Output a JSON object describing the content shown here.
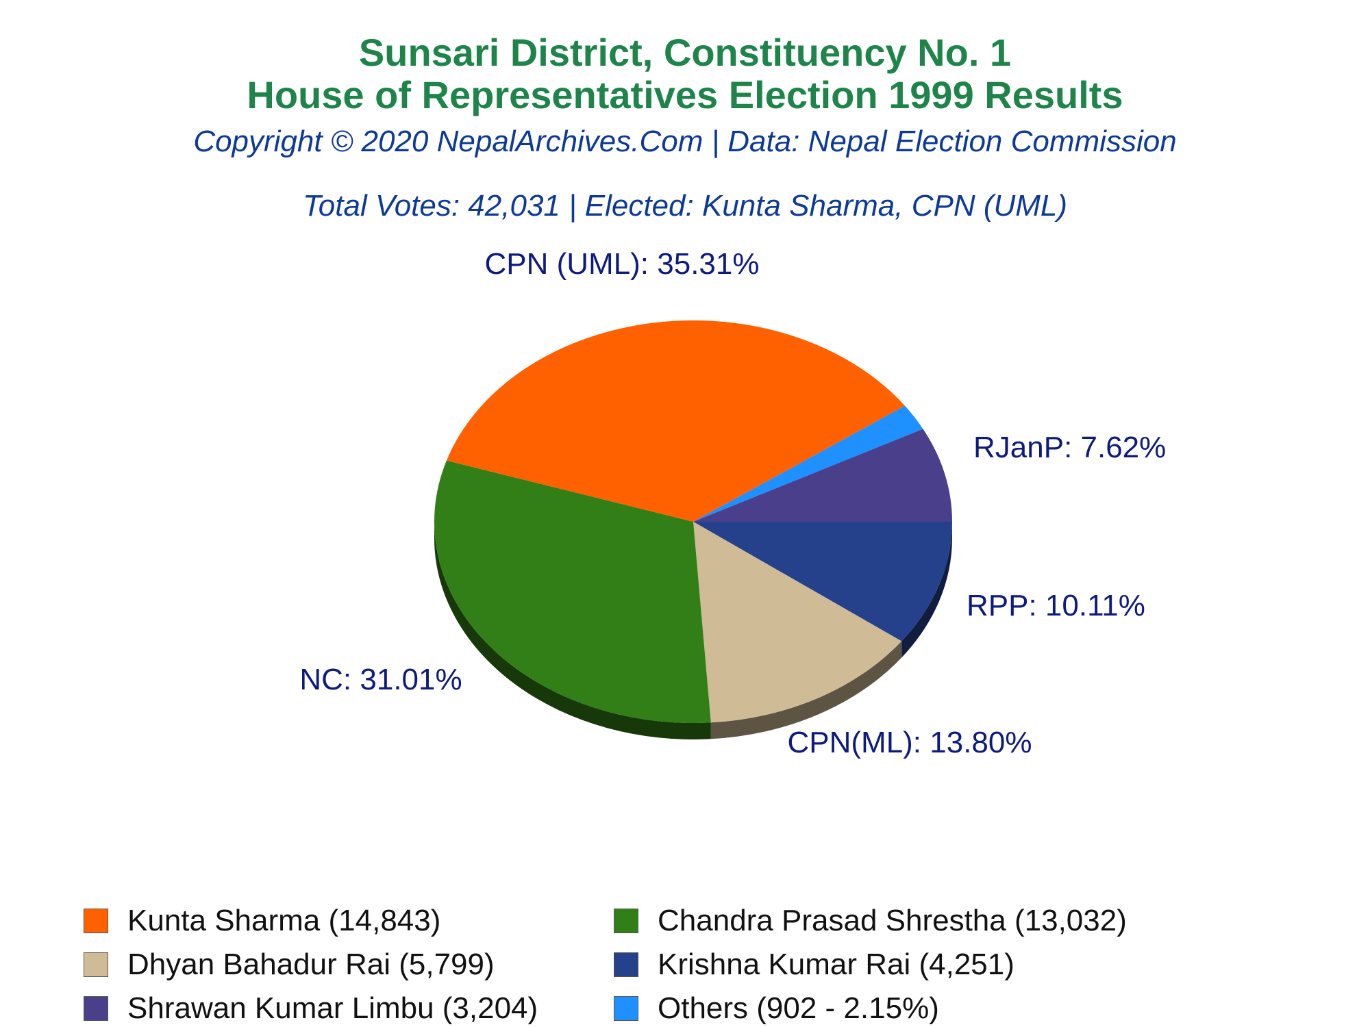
{
  "header": {
    "title_line1": "Sunsari District, Constituency No. 1",
    "title_line2": "House of Representatives Election 1999 Results",
    "copyright": "Copyright © 2020 NepalArchives.Com | Data: Nepal Election Commission",
    "summary": "Total Votes: 42,031 | Elected: Kunta Sharma, CPN (UML)"
  },
  "chart_data": {
    "type": "pie",
    "title": "Sunsari District, Constituency No. 1 House of Representatives Election 1999 Results",
    "total_votes": 42031,
    "slices": [
      {
        "candidate": "Kunta Sharma",
        "party": "CPN (UML)",
        "votes": 14843,
        "percent": 35.31,
        "label": "CPN (UML): 35.31%",
        "color": "#ff6000",
        "legend": "Kunta Sharma (14,843)"
      },
      {
        "candidate": "Chandra Prasad Shrestha",
        "party": "NC",
        "votes": 13032,
        "percent": 31.01,
        "label": "NC: 31.01%",
        "color": "#327f17",
        "legend": "Chandra Prasad Shrestha (13,032)"
      },
      {
        "candidate": "Dhyan Bahadur Rai",
        "party": "CPN(ML)",
        "votes": 5799,
        "percent": 13.8,
        "label": "CPN(ML): 13.80%",
        "color": "#cfbb96",
        "legend": "Dhyan Bahadur Rai (5,799)"
      },
      {
        "candidate": "Krishna Kumar Rai",
        "party": "RPP",
        "votes": 4251,
        "percent": 10.11,
        "label": "RPP: 10.11%",
        "color": "#25418b",
        "legend": "Krishna Kumar Rai (4,251)"
      },
      {
        "candidate": "Shrawan Kumar Limbu",
        "party": "RJanP",
        "votes": 3204,
        "percent": 7.62,
        "label": "RJanP: 7.62%",
        "color": "#4a3f8b",
        "legend": "Shrawan Kumar Limbu (3,204)"
      },
      {
        "candidate": "Others",
        "party": "Others",
        "votes": 902,
        "percent": 2.15,
        "label": "",
        "color": "#1e90ff",
        "legend": "Others (902 - 2.15%)"
      }
    ],
    "legend_order": [
      0,
      1,
      2,
      3,
      4,
      5
    ]
  }
}
